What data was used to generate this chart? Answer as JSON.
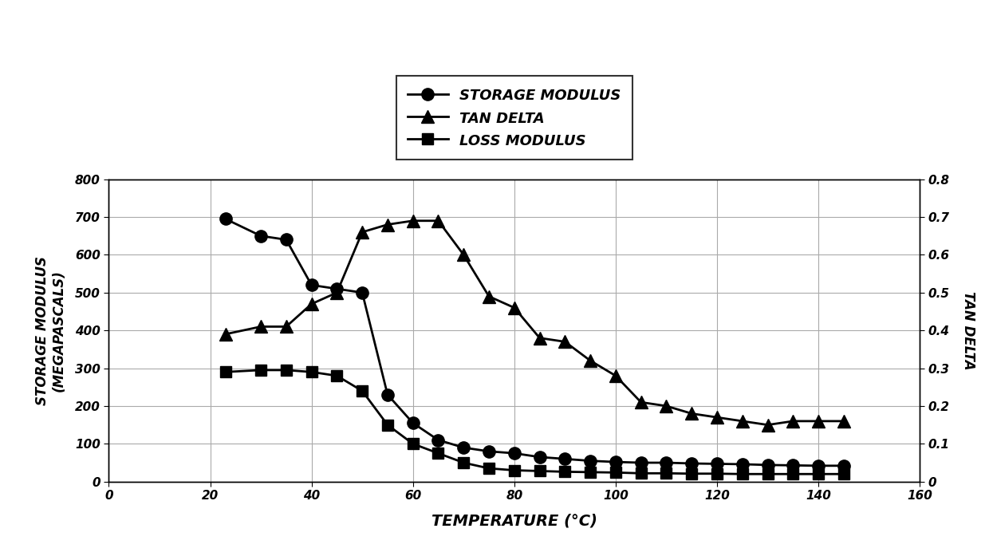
{
  "storage_modulus_x": [
    23,
    30,
    35,
    40,
    45,
    50,
    55,
    60,
    65,
    70,
    75,
    80,
    85,
    90,
    95,
    100,
    105,
    110,
    115,
    120,
    125,
    130,
    135,
    140,
    145
  ],
  "storage_modulus_y": [
    695,
    650,
    640,
    520,
    510,
    500,
    230,
    155,
    110,
    90,
    80,
    75,
    65,
    60,
    55,
    52,
    50,
    50,
    48,
    47,
    46,
    44,
    43,
    42,
    42
  ],
  "tan_delta_x": [
    23,
    30,
    35,
    40,
    45,
    50,
    55,
    60,
    65,
    70,
    75,
    80,
    85,
    90,
    95,
    100,
    105,
    110,
    115,
    120,
    125,
    130,
    135,
    140,
    145
  ],
  "tan_delta_y": [
    0.39,
    0.41,
    0.41,
    0.47,
    0.5,
    0.66,
    0.68,
    0.69,
    0.69,
    0.6,
    0.49,
    0.46,
    0.38,
    0.37,
    0.32,
    0.28,
    0.21,
    0.2,
    0.18,
    0.17,
    0.16,
    0.15,
    0.16,
    0.16,
    0.16
  ],
  "loss_modulus_x": [
    23,
    30,
    35,
    40,
    45,
    50,
    55,
    60,
    65,
    70,
    75,
    80,
    85,
    90,
    95,
    100,
    105,
    110,
    115,
    120,
    125,
    130,
    135,
    140,
    145
  ],
  "loss_modulus_y": [
    290,
    295,
    295,
    290,
    280,
    240,
    150,
    100,
    75,
    50,
    35,
    30,
    28,
    26,
    25,
    24,
    22,
    22,
    21,
    21,
    20,
    20,
    20,
    20,
    20
  ],
  "xlabel": "TEMPERATURE (°C)",
  "ylabel_left": "STORAGE MODULUS\n(MEGAPASCALS)",
  "ylabel_right": "TAN DELTA",
  "xlim": [
    0,
    160
  ],
  "ylim_left": [
    0,
    800
  ],
  "ylim_right": [
    0,
    0.8
  ],
  "xticks": [
    0,
    20,
    40,
    60,
    80,
    100,
    120,
    140,
    160
  ],
  "yticks_left": [
    0,
    100,
    200,
    300,
    400,
    500,
    600,
    700,
    800
  ],
  "yticks_right": [
    0,
    0.1,
    0.2,
    0.3,
    0.4,
    0.5,
    0.6,
    0.7,
    0.8
  ],
  "legend_labels": [
    "STORAGE MODULUS",
    "TAN DELTA",
    "LOSS MODULUS"
  ],
  "line_color": "#000000",
  "bg_color": "#ffffff",
  "grid_color": "#aaaaaa"
}
